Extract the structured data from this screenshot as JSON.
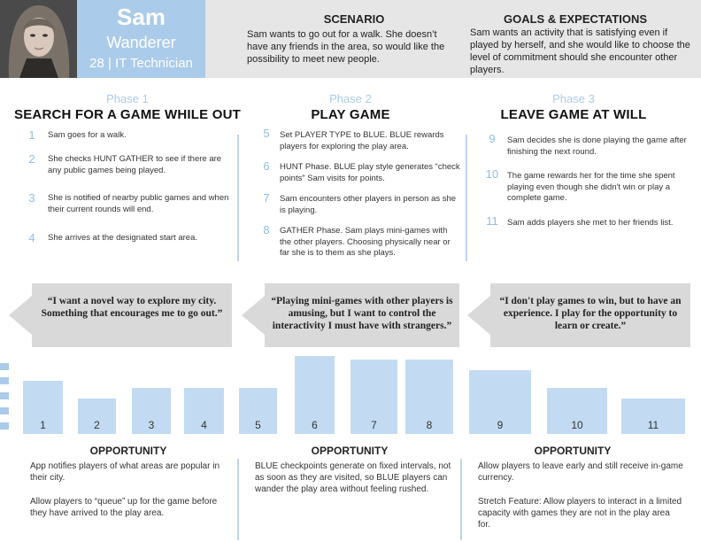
{
  "persona": {
    "name": "Sam",
    "role": "Wanderer",
    "meta": "28 | IT Technician"
  },
  "scenario": {
    "title": "SCENARIO",
    "text": "Sam wants to go out for a walk. She doesn’t have any friends in the area, so would like the possibility to meet new people."
  },
  "goals": {
    "title": "GOALS & EXPECTATIONS",
    "text": "Sam wants an activity that is satisfying even if played by herself, and she would like to choose the level of commitment should she encounter other players."
  },
  "phases": [
    {
      "label": "Phase 1",
      "title": "SEARCH FOR A GAME WHILE OUT",
      "steps": [
        {
          "num": "1",
          "text": "Sam goes for a walk."
        },
        {
          "num": "2",
          "text": "She checks HUNT GATHER to see if there are any public games being played."
        },
        {
          "num": "3",
          "text": "She is notified of nearby public games and when their current rounds will end."
        },
        {
          "num": "4",
          "text": "She arrives at the designated start area."
        }
      ],
      "quote": "“I want a novel way to explore my city. Something that encourages me to go out.”",
      "opportunity_title": "OPPORTUNITY",
      "opportunity": [
        "App notifies players of what areas are popular in their city.",
        "Allow players to “queue” up for the game before they have arrived to the play area."
      ]
    },
    {
      "label": "Phase 2",
      "title": "PLAY GAME",
      "steps": [
        {
          "num": "5",
          "text": "Set PLAYER TYPE to BLUE. BLUE rewards players for exploring the play area."
        },
        {
          "num": "6",
          "text": "HUNT Phase. BLUE play style generates “check points” Sam visits for points."
        },
        {
          "num": "7",
          "text": "Sam encounters other players in person as she is playing."
        },
        {
          "num": "8",
          "text": "GATHER Phase. Sam plays mini-games with the other players.  Choosing physically near or far she is to them as she plays."
        }
      ],
      "quote": "“Playing mini-games with other players is amusing, but I want to control the interactivity I must have with strangers.”",
      "opportunity_title": "OPPORTUNITY",
      "opportunity": [
        "BLUE checkpoints generate on fixed intervals, not as soon as they are visited, so BLUE players can wander the play area without feeling rushed."
      ]
    },
    {
      "label": "Phase 3",
      "title": "LEAVE GAME AT WILL",
      "steps": [
        {
          "num": "9",
          "text": "Sam decides she is done playing the game after finishing the next round."
        },
        {
          "num": "10",
          "text": "The game rewards her for the time she spent playing even though she didn't win or play a complete game."
        },
        {
          "num": "11",
          "text": "Sam adds players she met to her friends list."
        }
      ],
      "quote": "“I don't play games to win, but to have an experience. I play for the opportunity to learn or create.”",
      "opportunity_title": "OPPORTUNITY",
      "opportunity": [
        "Allow players to leave early and still receive in-game currency.",
        "Stretch Feature: Allow players to interact in a limited capacity with games they are not in the play area for."
      ]
    }
  ],
  "chart_data": {
    "type": "bar",
    "categories": [
      "1",
      "2",
      "3",
      "4",
      "5",
      "6",
      "7",
      "8",
      "9",
      "10",
      "11"
    ],
    "values": [
      3,
      2,
      2.6,
      2.6,
      2.6,
      4.4,
      4.2,
      4.2,
      3.6,
      2.6,
      2
    ],
    "ylim": [
      0,
      5
    ],
    "grid": false,
    "legend": "none",
    "title": "",
    "xlabel": "",
    "ylabel": ""
  },
  "colors": {
    "accent": "#aacbe9",
    "bar": "#c2dbf2",
    "quote_bg": "#d9d9d9",
    "header_bg": "#e6e6e6"
  },
  "icons": {
    "avatar": "person-photo"
  }
}
